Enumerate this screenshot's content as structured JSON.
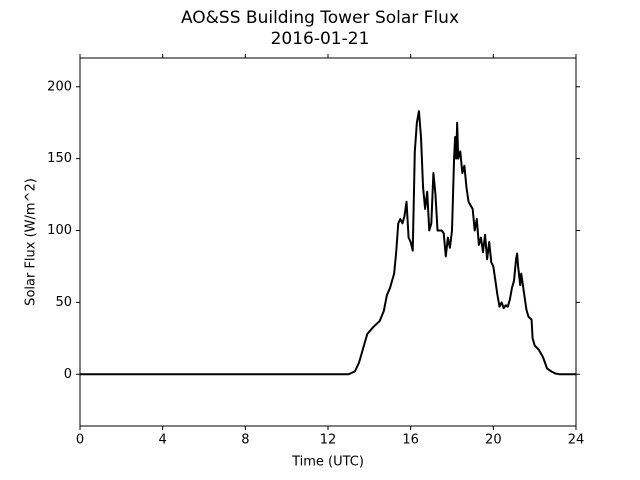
{
  "chart_data": {
    "type": "line",
    "title": "AO&SS Building Tower Solar Flux",
    "subtitle": "2016-01-21",
    "x_label": "Time (UTC)",
    "y_label": "Solar Flux (W/m^2)",
    "xlim": [
      0,
      24
    ],
    "xticks": [
      0,
      4,
      8,
      12,
      16,
      20,
      24
    ],
    "ylim": [
      -36,
      220
    ],
    "yticks": [
      0,
      50,
      100,
      150,
      200
    ],
    "series": [
      {
        "color": "#000000",
        "x": [
          0,
          13.0,
          13.3,
          13.5,
          13.7,
          13.9,
          14.2,
          14.5,
          14.7,
          14.85,
          15.0,
          15.2,
          15.3,
          15.4,
          15.5,
          15.6,
          15.7,
          15.8,
          15.9,
          16.0,
          16.1,
          16.15,
          16.2,
          16.3,
          16.4,
          16.5,
          16.6,
          16.7,
          16.8,
          16.9,
          17.0,
          17.1,
          17.2,
          17.3,
          17.4,
          17.5,
          17.6,
          17.7,
          17.8,
          17.9,
          18.0,
          18.1,
          18.15,
          18.2,
          18.25,
          18.3,
          18.4,
          18.5,
          18.6,
          18.7,
          18.8,
          19.0,
          19.1,
          19.2,
          19.3,
          19.4,
          19.5,
          19.6,
          19.7,
          19.8,
          19.9,
          20.0,
          20.1,
          20.2,
          20.3,
          20.4,
          20.5,
          20.6,
          20.7,
          20.8,
          20.9,
          21.0,
          21.1,
          21.15,
          21.2,
          21.3,
          21.35,
          21.5,
          21.6,
          21.7,
          21.85,
          21.9,
          22.0,
          22.2,
          22.4,
          22.5,
          22.6,
          22.8,
          23.0,
          23.2,
          24
        ],
        "values": [
          0,
          0,
          2,
          8,
          18,
          28,
          33,
          37,
          44,
          55,
          60,
          70,
          85,
          105,
          108,
          105,
          110,
          120,
          95,
          92,
          86,
          120,
          155,
          175,
          183,
          165,
          130,
          115,
          127,
          100,
          105,
          140,
          125,
          100,
          100,
          100,
          98,
          82,
          95,
          88,
          100,
          150,
          165,
          150,
          175,
          150,
          155,
          140,
          145,
          130,
          120,
          115,
          100,
          108,
          90,
          95,
          85,
          97,
          80,
          92,
          78,
          75,
          65,
          55,
          47,
          50,
          46,
          48,
          47,
          52,
          60,
          65,
          80,
          84,
          75,
          62,
          70,
          55,
          45,
          40,
          38,
          25,
          20,
          17,
          12,
          8,
          4,
          2,
          0.5,
          0,
          0
        ]
      }
    ]
  }
}
